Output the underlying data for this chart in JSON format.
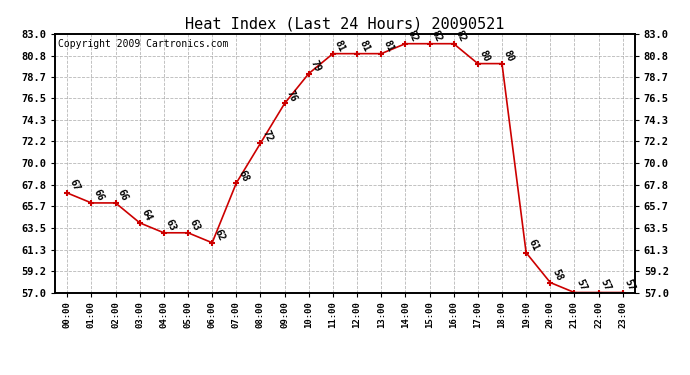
{
  "title": "Heat Index (Last 24 Hours) 20090521",
  "copyright": "Copyright 2009 Cartronics.com",
  "hours": [
    "00:00",
    "01:00",
    "02:00",
    "03:00",
    "04:00",
    "05:00",
    "06:00",
    "07:00",
    "08:00",
    "09:00",
    "10:00",
    "11:00",
    "12:00",
    "13:00",
    "14:00",
    "15:00",
    "16:00",
    "17:00",
    "18:00",
    "19:00",
    "20:00",
    "21:00",
    "22:00",
    "23:00"
  ],
  "values": [
    67,
    66,
    66,
    64,
    63,
    63,
    62,
    68,
    72,
    76,
    79,
    81,
    81,
    81,
    82,
    82,
    82,
    80,
    80,
    61,
    58,
    57,
    57,
    57
  ],
  "yticks": [
    57.0,
    59.2,
    61.3,
    63.5,
    65.7,
    67.8,
    70.0,
    72.2,
    74.3,
    76.5,
    78.7,
    80.8,
    83.0
  ],
  "ylim": [
    57.0,
    83.0
  ],
  "line_color": "#cc0000",
  "marker_color": "#cc0000",
  "bg_color": "#ffffff",
  "grid_color": "#999999",
  "title_fontsize": 11,
  "copyright_fontsize": 7,
  "label_fontsize": 7
}
